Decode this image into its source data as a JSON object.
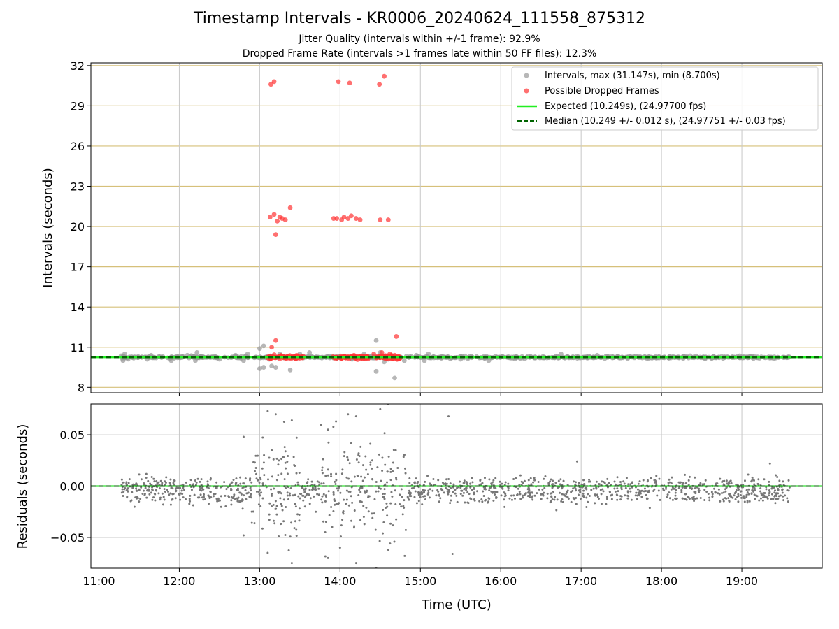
{
  "figure": {
    "title": "Timestamp Intervals - KR0006_20240624_111558_875312",
    "subtitle_1": "Jitter Quality (intervals within +/-1 frame): 92.9%",
    "subtitle_2": "Dropped Frame Rate (intervals >1 frames late within 50 FF files): 12.3%"
  },
  "colors": {
    "intervals": "#999999",
    "dropped": "#ff3333",
    "expected": "#22ee22",
    "median": "#006400",
    "grid_horizontal": "#d6c07a",
    "grid_vertical": "#c8c8c8",
    "residuals": "#777777",
    "zero_line": "#00dd00"
  },
  "chart_data": [
    {
      "type": "scatter",
      "panel": "top",
      "xlabel": "",
      "ylabel": "Intervals (seconds)",
      "x_unit": "hours UTC",
      "xlim": [
        10.9,
        20.0
      ],
      "ylim": [
        7.6,
        32.2
      ],
      "yticks": [
        8,
        11,
        14,
        17,
        20,
        23,
        26,
        29,
        32
      ],
      "grid": "on",
      "legend_position": "top-right",
      "legend": [
        "Intervals, max (31.147s), min (8.700s)",
        "Possible Dropped Frames",
        "Expected (10.249s), (24.97700 fps)",
        "Median (10.249 +/- 0.012 s), (24.97751 +/- 0.03 fps)"
      ],
      "expected_value": 10.249,
      "median_value": 10.249,
      "interval_band": {
        "x_start": 11.27,
        "x_end": 19.6,
        "value": 10.249
      },
      "intervals_outliers": [
        [
          11.3,
          10.0
        ],
        [
          11.32,
          10.5
        ],
        [
          11.6,
          10.1
        ],
        [
          11.65,
          10.4
        ],
        [
          11.9,
          10.0
        ],
        [
          12.1,
          10.4
        ],
        [
          12.2,
          10.0
        ],
        [
          12.22,
          10.6
        ],
        [
          12.5,
          10.1
        ],
        [
          12.7,
          10.4
        ],
        [
          12.8,
          10.0
        ],
        [
          12.85,
          10.5
        ],
        [
          13.0,
          9.4
        ],
        [
          13.0,
          10.9
        ],
        [
          13.05,
          9.5
        ],
        [
          13.05,
          11.1
        ],
        [
          13.12,
          10.1
        ],
        [
          13.15,
          9.6
        ],
        [
          13.2,
          9.5
        ],
        [
          13.25,
          10.5
        ],
        [
          13.38,
          9.3
        ],
        [
          13.5,
          10.5
        ],
        [
          13.62,
          10.6
        ],
        [
          13.85,
          10.3
        ],
        [
          14.15,
          10.1
        ],
        [
          14.3,
          10.5
        ],
        [
          14.4,
          10.2
        ],
        [
          14.45,
          9.2
        ],
        [
          14.45,
          11.5
        ],
        [
          14.5,
          10.6
        ],
        [
          14.55,
          9.9
        ],
        [
          14.6,
          10.1
        ],
        [
          14.68,
          8.7
        ],
        [
          14.8,
          10.0
        ],
        [
          14.95,
          10.4
        ],
        [
          15.05,
          10.0
        ],
        [
          15.1,
          10.5
        ],
        [
          15.5,
          10.1
        ],
        [
          15.7,
          10.3
        ],
        [
          15.85,
          10.0
        ],
        [
          16.75,
          10.5
        ],
        [
          17.2,
          10.4
        ]
      ],
      "dropped_frames": [
        [
          13.14,
          30.6
        ],
        [
          13.18,
          30.8
        ],
        [
          13.98,
          30.8
        ],
        [
          14.12,
          30.7
        ],
        [
          14.49,
          30.6
        ],
        [
          14.55,
          31.2
        ],
        [
          13.38,
          21.4
        ],
        [
          13.13,
          20.7
        ],
        [
          13.18,
          20.9
        ],
        [
          13.22,
          20.4
        ],
        [
          13.25,
          20.7
        ],
        [
          13.28,
          20.6
        ],
        [
          13.32,
          20.5
        ],
        [
          13.2,
          19.4
        ],
        [
          13.92,
          20.6
        ],
        [
          13.96,
          20.6
        ],
        [
          14.02,
          20.5
        ],
        [
          14.05,
          20.7
        ],
        [
          14.1,
          20.6
        ],
        [
          14.14,
          20.8
        ],
        [
          14.2,
          20.6
        ],
        [
          14.25,
          20.5
        ],
        [
          14.5,
          20.5
        ],
        [
          14.6,
          20.5
        ],
        [
          13.2,
          11.5
        ],
        [
          13.15,
          11.0
        ],
        [
          14.7,
          11.8
        ],
        [
          14.42,
          10.5
        ],
        [
          14.52,
          10.6
        ],
        [
          14.62,
          10.5
        ],
        [
          14.68,
          10.4
        ]
      ],
      "dropped_band_segments": [
        [
          13.1,
          13.55
        ],
        [
          13.9,
          14.35
        ],
        [
          14.45,
          14.75
        ]
      ]
    },
    {
      "type": "scatter",
      "panel": "bottom",
      "xlabel": "Time (UTC)",
      "ylabel": "Residuals (seconds)",
      "x_unit": "hours UTC",
      "xlim": [
        10.9,
        20.0
      ],
      "ylim": [
        -0.08,
        0.08
      ],
      "xticks": [
        11,
        12,
        13,
        14,
        15,
        16,
        17,
        18,
        19
      ],
      "xtick_labels": [
        "11:00",
        "12:00",
        "13:00",
        "14:00",
        "15:00",
        "16:00",
        "17:00",
        "18:00",
        "19:00"
      ],
      "yticks": [
        -0.05,
        0.0,
        0.05
      ],
      "ytick_labels": [
        "−0.05",
        "0.00",
        "0.05"
      ],
      "grid": "on",
      "zero_line": 0.0,
      "residual_range": {
        "x_start": 11.27,
        "x_end": 19.6
      },
      "residual_outliers": [
        [
          12.8,
          0.048
        ],
        [
          12.8,
          -0.048
        ],
        [
          13.1,
          0.073
        ],
        [
          13.2,
          0.07
        ],
        [
          13.4,
          0.064
        ],
        [
          13.4,
          -0.075
        ],
        [
          13.1,
          -0.065
        ],
        [
          13.85,
          0.055
        ],
        [
          13.95,
          0.063
        ],
        [
          14.1,
          0.07
        ],
        [
          14.2,
          0.068
        ],
        [
          14.5,
          0.075
        ],
        [
          14.6,
          0.08
        ],
        [
          13.85,
          -0.07
        ],
        [
          14.0,
          -0.06
        ],
        [
          14.2,
          -0.075
        ],
        [
          14.45,
          -0.08
        ],
        [
          14.6,
          -0.062
        ],
        [
          15.35,
          0.068
        ],
        [
          15.4,
          -0.066
        ],
        [
          16.95,
          0.024
        ],
        [
          19.35,
          0.022
        ]
      ]
    }
  ]
}
